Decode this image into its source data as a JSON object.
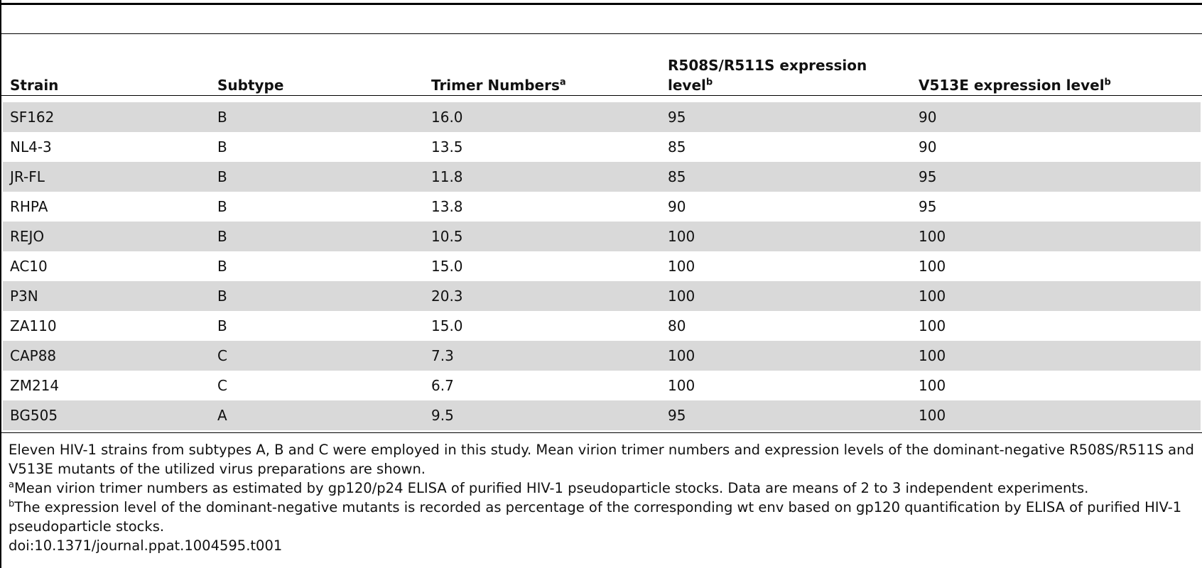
{
  "table": {
    "headers": [
      {
        "text": "Strain",
        "sup": ""
      },
      {
        "text": "Subtype",
        "sup": ""
      },
      {
        "text": "Trimer Numbers",
        "sup": "a"
      },
      {
        "text": "R508S/R511S expression level",
        "sup": "b"
      },
      {
        "text": "V513E expression level",
        "sup": "b"
      }
    ],
    "rows": [
      [
        "SF162",
        "B",
        "16.0",
        "95",
        "90"
      ],
      [
        "NL4-3",
        "B",
        "13.5",
        "85",
        "90"
      ],
      [
        "JR-FL",
        "B",
        "11.8",
        "85",
        "95"
      ],
      [
        "RHPA",
        "B",
        "13.8",
        "90",
        "95"
      ],
      [
        "REJO",
        "B",
        "10.5",
        "100",
        "100"
      ],
      [
        "AC10",
        "B",
        "15.0",
        "100",
        "100"
      ],
      [
        "P3N",
        "B",
        "20.3",
        "100",
        "100"
      ],
      [
        "ZA110",
        "B",
        "15.0",
        "80",
        "100"
      ],
      [
        "CAP88",
        "C",
        "7.3",
        "100",
        "100"
      ],
      [
        "ZM214",
        "C",
        "6.7",
        "100",
        "100"
      ],
      [
        "BG505",
        "A",
        "9.5",
        "95",
        "100"
      ]
    ]
  },
  "footnotes": {
    "caption": "Eleven HIV-1 strains from subtypes A, B and C were employed in this study. Mean virion trimer numbers and expression levels of the dominant-negative R508S/R511S and V513E mutants of the utilized virus preparations are shown.",
    "note_a": {
      "marker": "a",
      "text": "Mean virion trimer numbers as estimated by gp120/p24 ELISA of purified HIV-1 pseudoparticle stocks. Data are means of 2 to 3 independent experiments."
    },
    "note_b": {
      "marker": "b",
      "text": "The expression level of the dominant-negative mutants is recorded as percentage of the corresponding wt env based on gp120 quantification by ELISA of purified HIV-1 pseudoparticle stocks."
    },
    "doi": "doi:10.1371/journal.ppat.1004595.t001"
  }
}
